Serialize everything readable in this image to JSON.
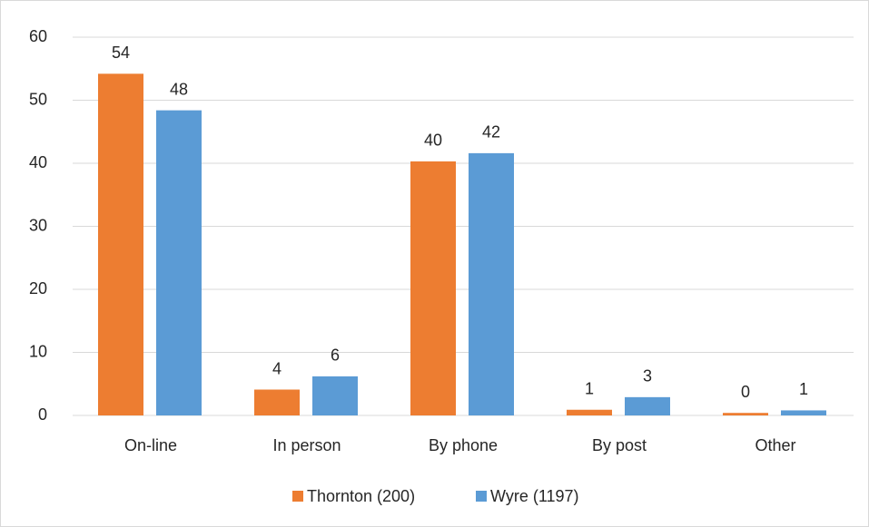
{
  "chart_data": {
    "type": "bar",
    "categories": [
      "On-line",
      "In person",
      "By phone",
      "By post",
      "Other"
    ],
    "series": [
      {
        "name": "Thornton (200)",
        "color": "#ed7d31",
        "values": [
          54.2,
          4.1,
          40.3,
          0.9,
          0.4
        ],
        "value_labels": [
          "54",
          "4",
          "40",
          "1",
          "0"
        ]
      },
      {
        "name": "Wyre (1197)",
        "color": "#5b9bd5",
        "values": [
          48.4,
          6.2,
          41.6,
          2.9,
          0.8
        ],
        "value_labels": [
          "48",
          "6",
          "42",
          "3",
          "1"
        ]
      }
    ],
    "ylim": [
      0,
      60
    ],
    "yticks": [
      0,
      10,
      20,
      30,
      40,
      50,
      60
    ],
    "grid": true,
    "legend": "bottom"
  }
}
